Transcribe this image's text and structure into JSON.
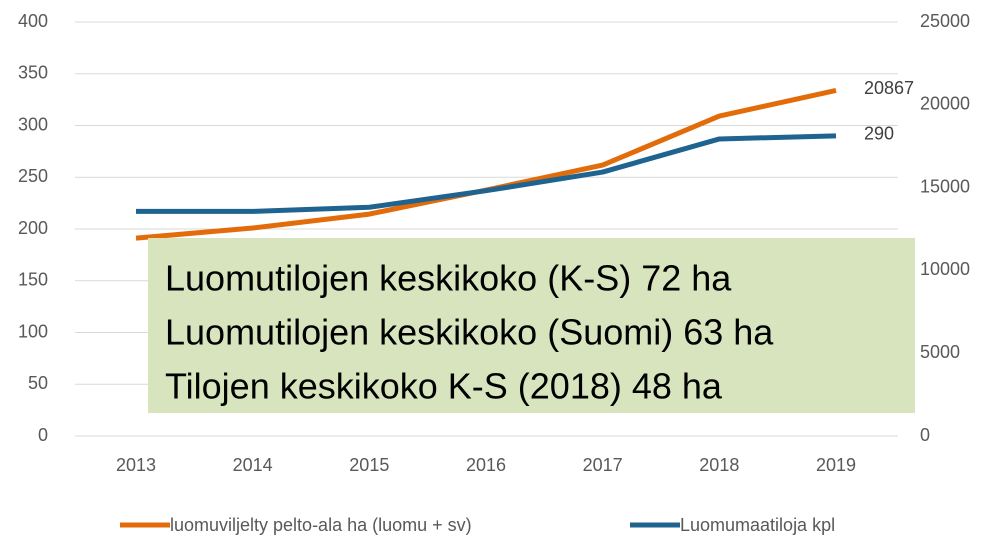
{
  "chart_data": {
    "type": "line",
    "categories": [
      "2013",
      "2014",
      "2015",
      "2016",
      "2017",
      "2018",
      "2019"
    ],
    "series": [
      {
        "name": "luomuviljelty pelto-ala ha (luomu + sv)",
        "color": "#e36c0a",
        "axis": "y2",
        "values": [
          11950,
          12560,
          13400,
          14850,
          16360,
          19320,
          20867
        ]
      },
      {
        "name": "Luomumaatiloja kpl",
        "color": "#1f6391",
        "axis": "y",
        "values": [
          217,
          217,
          221,
          237,
          255,
          287,
          290
        ]
      }
    ],
    "ylim": [
      0,
      400
    ],
    "yticks": [
      0,
      50,
      100,
      150,
      200,
      250,
      300,
      350,
      400
    ],
    "y2lim": [
      0,
      25000
    ],
    "y2ticks": [
      0,
      5000,
      10000,
      15000,
      20000,
      25000
    ],
    "grid": true,
    "legend": "bottom",
    "annotations": [
      "Luomutilojen keskikoko (K-S) 72 ha",
      "Luomutilojen keskikoko (Suomi) 63 ha",
      "Tilojen keskikoko K-S (2018) 48 ha"
    ],
    "annotation_color": "#d7e4bd"
  }
}
